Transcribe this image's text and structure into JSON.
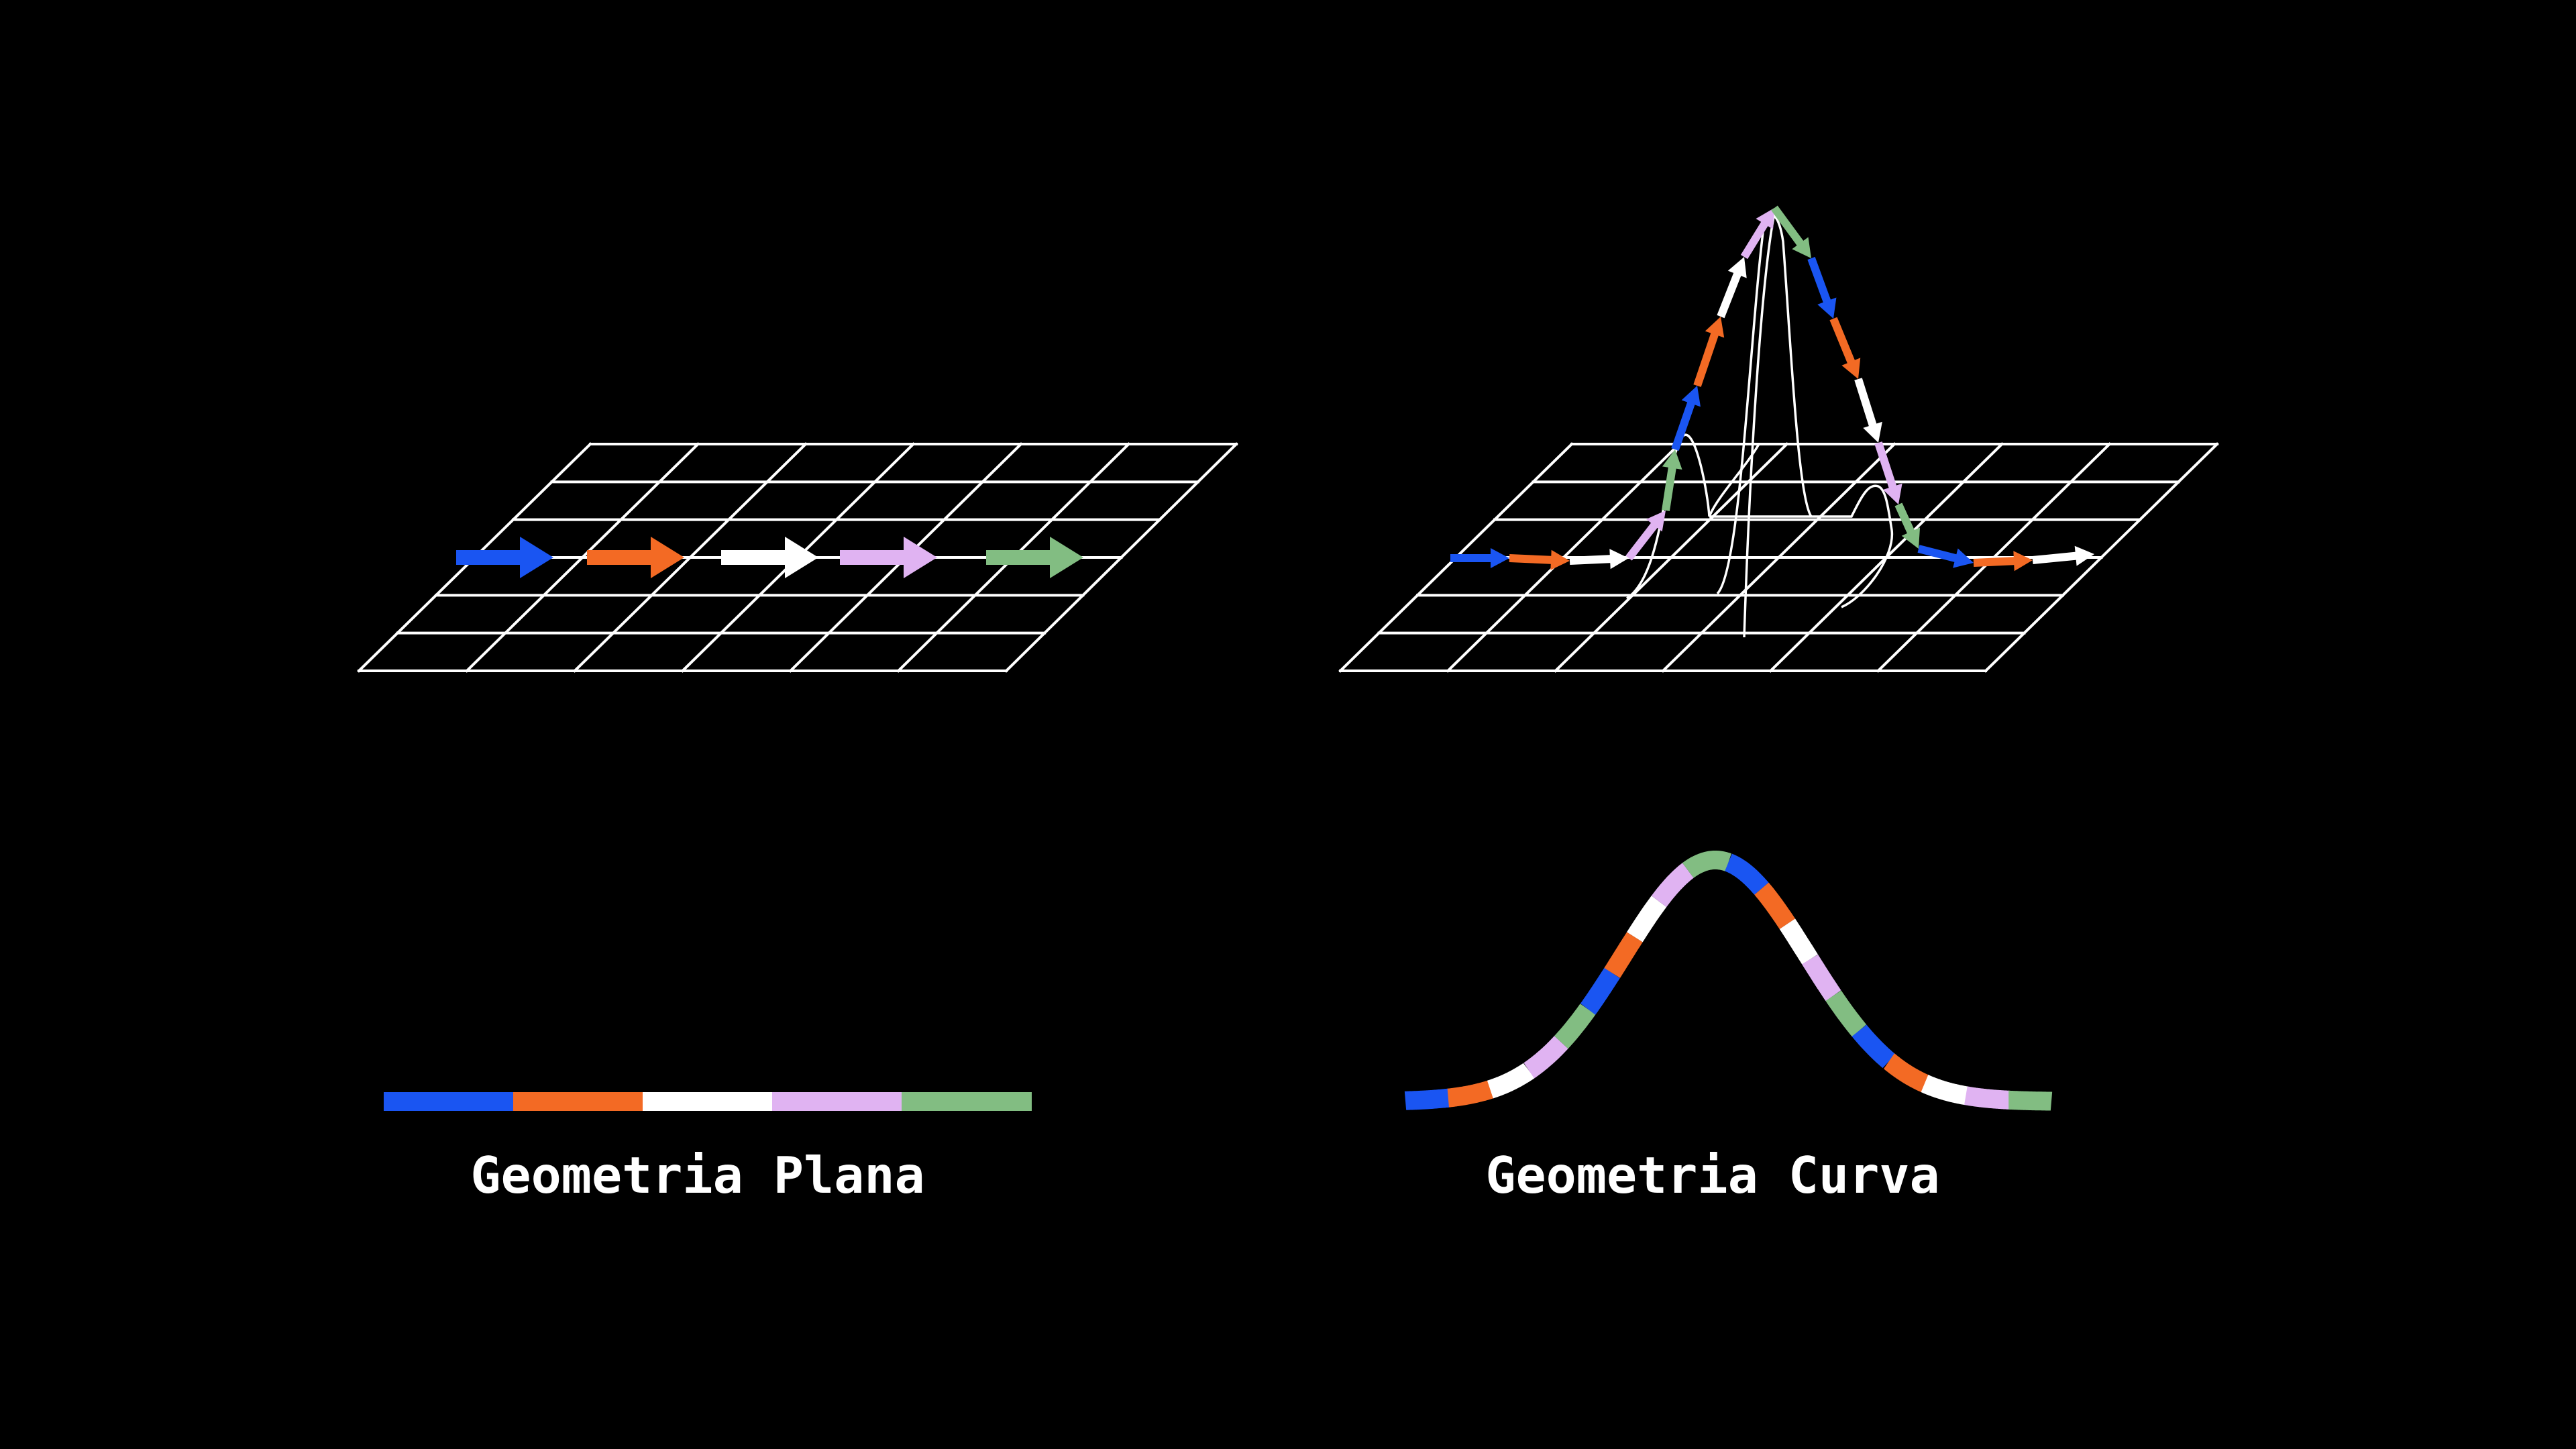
{
  "panels": {
    "flat": {
      "caption": "Geometria Plana"
    },
    "curved": {
      "caption": "Geometria Curva"
    }
  },
  "colors": {
    "background": "#000000",
    "grid": "#ffffff",
    "blue": "#1a55f2",
    "orange": "#f36a24",
    "white": "#ffffff",
    "lavender": "#e0b3f2",
    "green": "#82bd82"
  },
  "flat_arrow_colors": [
    "blue",
    "orange",
    "white",
    "lavender",
    "green"
  ],
  "flat_strip_colors": [
    "blue",
    "orange",
    "white",
    "lavender",
    "green"
  ],
  "curved_arrow_colors": [
    "blue",
    "orange",
    "white",
    "lavender",
    "green",
    "blue",
    "orange",
    "white",
    "lavender",
    "green",
    "blue",
    "orange",
    "white",
    "lavender",
    "green",
    "blue",
    "orange",
    "white"
  ],
  "curved_strip_colors": [
    "blue",
    "orange",
    "white",
    "lavender",
    "green",
    "blue",
    "orange",
    "white",
    "lavender",
    "green",
    "blue",
    "orange",
    "white",
    "lavender",
    "green",
    "blue",
    "orange",
    "white",
    "lavender",
    "green"
  ]
}
